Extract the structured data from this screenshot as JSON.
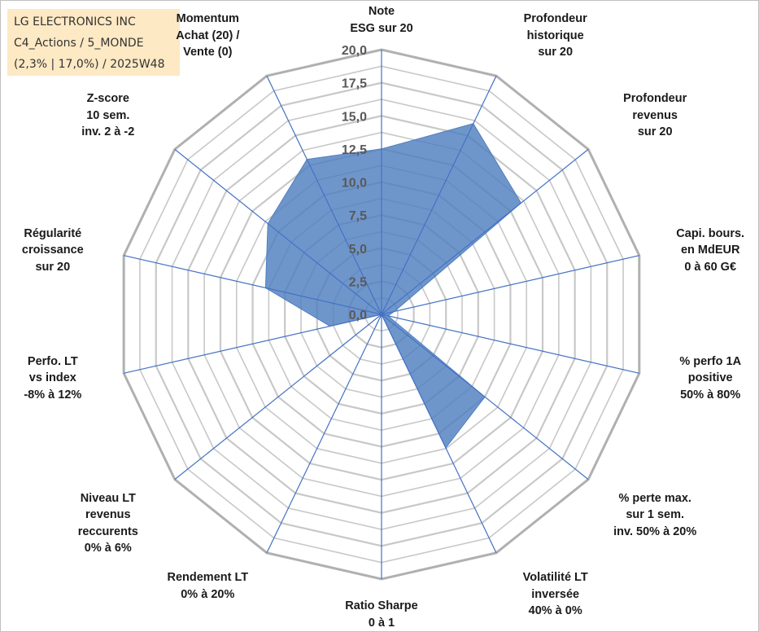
{
  "info_box": {
    "line1": "LG ELECTRONICS INC",
    "line2": "C4_Actions / 5_MONDE",
    "line3": "(2,3% | 17,0%) / 2025W48"
  },
  "colors": {
    "fill": "#4f7fbf",
    "axis": "#4472c4",
    "grid": "#c8c8c8",
    "grid_outer": "#b0b0b0",
    "info_bg": "#fde9c4"
  },
  "chart_data": {
    "type": "radar",
    "title": "LG ELECTRONICS INC",
    "rmin": 0,
    "rmax": 20,
    "grid_step": 1.25,
    "tick_values": [
      0,
      2.5,
      5,
      7.5,
      10,
      12.5,
      15,
      17.5,
      20
    ],
    "tick_labels": [
      "0,0",
      "2,5",
      "5,0",
      "7,5",
      "10,0",
      "12,5",
      "15,0",
      "17,5",
      "20,0"
    ],
    "axes": [
      {
        "lines": [
          "Note",
          "ESG sur 20"
        ]
      },
      {
        "lines": [
          "Profondeur",
          "historique",
          "sur 20"
        ]
      },
      {
        "lines": [
          "Profondeur",
          "revenus",
          "sur 20"
        ]
      },
      {
        "lines": [
          "Capi. bours.",
          "en MdEUR",
          "0 à 60 G€"
        ]
      },
      {
        "lines": [
          "% perfo 1A",
          "positive",
          "50% à 80%"
        ]
      },
      {
        "lines": [
          "% perte max.",
          "sur 1 sem.",
          "inv. 50% à 20%"
        ]
      },
      {
        "lines": [
          "Volatilité LT",
          "inversée",
          "40% à 0%"
        ]
      },
      {
        "lines": [
          "Ratio Sharpe",
          "0 à 1"
        ]
      },
      {
        "lines": [
          "Rendement LT",
          "0% à 20%"
        ]
      },
      {
        "lines": [
          "Niveau LT",
          "revenus",
          "reccurents",
          "0% à 6%"
        ]
      },
      {
        "lines": [
          "Perfo. LT",
          "vs index",
          "-8% à 12%"
        ]
      },
      {
        "lines": [
          "Régularité",
          "croissance",
          "sur 20"
        ]
      },
      {
        "lines": [
          "Z-score",
          "10 sem.",
          "inv. 2 à -2"
        ]
      },
      {
        "lines": [
          "Momentum",
          "Achat (20) /",
          "Vente (0)"
        ]
      }
    ],
    "series": [
      {
        "name": "LG ELECTRONICS INC",
        "values": [
          12.5,
          16.0,
          13.5,
          1.0,
          0.5,
          10.0,
          11.2,
          0.0,
          1.0,
          0.0,
          4.0,
          9.0,
          11.0,
          13.0
        ]
      }
    ]
  }
}
